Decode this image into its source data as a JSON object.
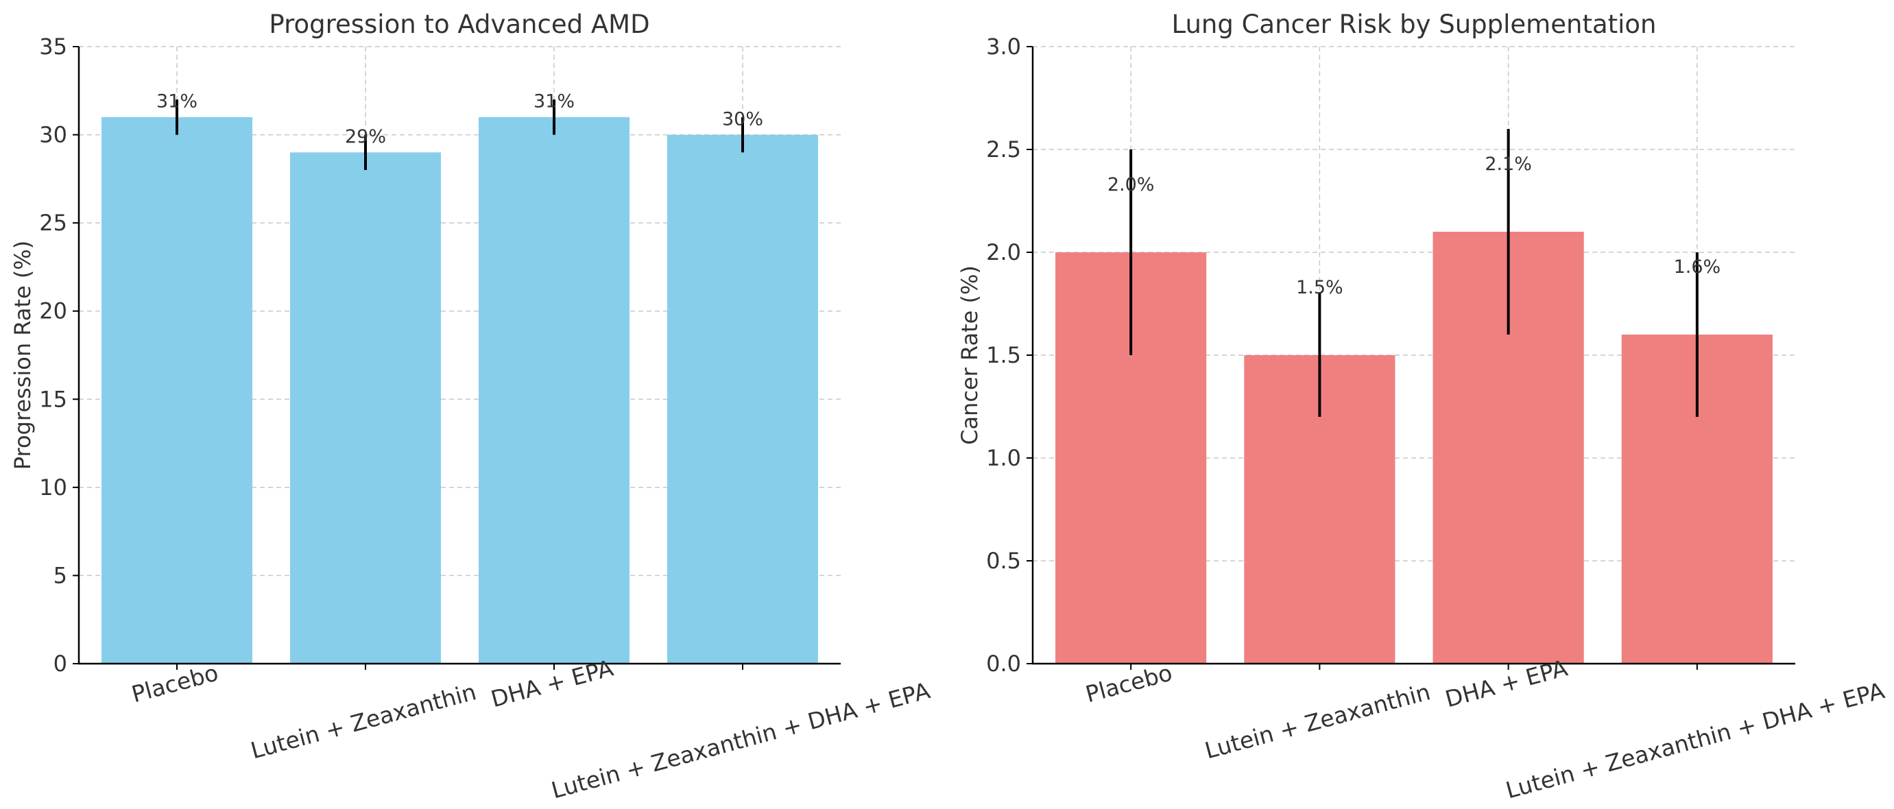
{
  "chart_data": [
    {
      "type": "bar",
      "title": "Progression to Advanced AMD",
      "xlabel": "",
      "ylabel": "Progression Rate (%)",
      "categories": [
        "Placebo",
        "Lutein + Zeaxanthin",
        "DHA + EPA",
        "Lutein + Zeaxanthin + DHA + EPA"
      ],
      "values": [
        31,
        29,
        31,
        30
      ],
      "error": [
        1,
        1,
        1,
        1
      ],
      "data_labels": [
        "31%",
        "29%",
        "31%",
        "30%"
      ],
      "ylim": [
        0,
        35
      ],
      "yticks": [
        0,
        5,
        10,
        15,
        20,
        25,
        30,
        35
      ],
      "ytick_labels": [
        "0",
        "5",
        "10",
        "15",
        "20",
        "25",
        "30",
        "35"
      ],
      "grid": true,
      "color": "#87CEEB"
    },
    {
      "type": "bar",
      "title": "Lung Cancer Risk by Supplementation",
      "xlabel": "",
      "ylabel": "Cancer Rate (%)",
      "categories": [
        "Placebo",
        "Lutein + Zeaxanthin",
        "DHA + EPA",
        "Lutein + Zeaxanthin + DHA + EPA"
      ],
      "values": [
        2.0,
        1.5,
        2.1,
        1.6
      ],
      "error": [
        0.5,
        0.3,
        0.5,
        0.4
      ],
      "data_labels": [
        "2.0%",
        "1.5%",
        "2.1%",
        "1.6%"
      ],
      "ylim": [
        0,
        3.0
      ],
      "yticks": [
        0,
        0.5,
        1.0,
        1.5,
        2.0,
        2.5,
        3.0
      ],
      "ytick_labels": [
        "0.0",
        "0.5",
        "1.0",
        "1.5",
        "2.0",
        "2.5",
        "3.0"
      ],
      "grid": true,
      "color": "#F08080"
    }
  ]
}
